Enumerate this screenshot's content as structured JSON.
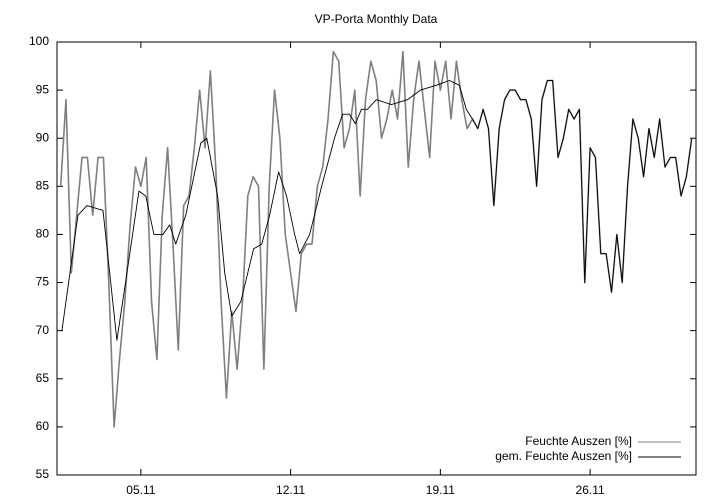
{
  "chart_data": {
    "type": "line",
    "title": "VP-Porta Monthly Data",
    "xlim": [
      1.08,
      30.95
    ],
    "xticks": [
      {
        "value": 5,
        "label": "05.11"
      },
      {
        "value": 12,
        "label": "12.11"
      },
      {
        "value": 19,
        "label": "19.11"
      },
      {
        "value": 26,
        "label": "26.11"
      }
    ],
    "ylim": [
      55,
      100
    ],
    "yticks": [
      55,
      60,
      65,
      70,
      75,
      80,
      85,
      90,
      95,
      100
    ],
    "grid": false,
    "legend": "bottom right",
    "series": [
      {
        "name": "Feuchte Auszen [%]",
        "color": "#7f7f7f",
        "x": [
          1.25,
          1.5,
          1.75,
          2,
          2.25,
          2.5,
          2.75,
          3,
          3.25,
          3.5,
          3.75,
          4,
          4.25,
          4.5,
          4.75,
          5,
          5.25,
          5.5,
          5.75,
          6,
          6.25,
          6.5,
          6.75,
          7,
          7.25,
          7.5,
          7.75,
          8,
          8.25,
          8.5,
          8.75,
          9,
          9.25,
          9.5,
          9.75,
          10,
          10.25,
          10.5,
          10.75,
          11,
          11.25,
          11.5,
          11.75,
          12,
          12.25,
          12.5,
          12.75,
          13,
          13.25,
          13.5,
          13.75,
          14,
          14.25,
          14.5,
          14.75,
          15,
          15.25,
          15.5,
          15.75,
          16,
          16.25,
          16.5,
          16.75,
          17,
          17.25,
          17.5,
          17.75,
          18,
          18.25,
          18.5,
          18.75,
          19,
          19.25,
          19.5,
          19.75,
          20,
          20.25,
          20.5,
          20.75,
          21,
          21.25,
          21.5,
          21.75,
          22,
          22.25,
          22.5,
          22.75,
          23,
          23.25,
          23.5,
          23.75,
          24,
          24.25,
          24.5,
          24.75,
          25,
          25.25,
          25.5,
          25.75,
          26,
          26.25,
          26.5,
          26.75,
          27,
          27.25,
          27.5,
          27.75,
          28,
          28.25,
          28.5,
          28.75,
          29,
          29.25,
          29.5,
          29.75,
          30,
          30.25,
          30.5,
          30.75
        ],
        "values": [
          85,
          94,
          76,
          82,
          88,
          88,
          82,
          88,
          88,
          75,
          60,
          67,
          73,
          81,
          87,
          85,
          88,
          73,
          67,
          82,
          89,
          79,
          68,
          83,
          84,
          89,
          95,
          89,
          97,
          87,
          73,
          63,
          72,
          66,
          73,
          84,
          86,
          85,
          66,
          85,
          95,
          90,
          80,
          76,
          72,
          78,
          79,
          79,
          85,
          87,
          92,
          99,
          98,
          89,
          91,
          95,
          84,
          94,
          98,
          96,
          90,
          92,
          95,
          92,
          99,
          87,
          94,
          98,
          93,
          88,
          98,
          95,
          98,
          92,
          98,
          94,
          91,
          92,
          91,
          93,
          91,
          83,
          91,
          94,
          95,
          95,
          94,
          94,
          92,
          85,
          94,
          96,
          96,
          88,
          90,
          93,
          92,
          93,
          75,
          89,
          88,
          78,
          78,
          74,
          80,
          75,
          85,
          92,
          90,
          86,
          91,
          88,
          92,
          87,
          88,
          88,
          84,
          86,
          90
        ]
      },
      {
        "name": "gem. Feuchte Auszen [%]",
        "color": "#000000",
        "x": [
          1.31,
          2.06,
          2.48,
          3.23,
          3.88,
          4.35,
          4.91,
          5.23,
          5.61,
          6.03,
          6.35,
          6.63,
          7.1,
          7.8,
          8.08,
          8.59,
          8.92,
          9.25,
          9.67,
          10.27,
          10.65,
          11.02,
          11.44,
          11.81,
          12.19,
          12.42,
          12.89,
          13.45,
          14.05,
          14.43,
          14.75,
          15.03,
          15.31,
          15.59,
          16.01,
          16.71,
          17.46,
          18.07,
          18.81,
          19.42,
          19.89,
          20.21,
          20.5,
          20.75,
          21,
          21.25,
          21.5,
          21.75,
          22,
          22.25,
          22.5,
          22.75,
          23,
          23.25,
          23.5,
          23.75,
          24,
          24.25,
          24.5,
          24.75,
          25,
          25.25,
          25.5,
          25.75,
          26,
          26.25,
          26.5,
          26.75,
          27,
          27.25,
          27.5,
          27.75,
          28,
          28.25,
          28.5,
          28.75,
          29,
          29.25,
          29.5,
          29.75,
          30,
          30.25,
          30.5,
          30.75
        ],
        "values": [
          70,
          82,
          83,
          82.5,
          69,
          76,
          84.5,
          84,
          80,
          80,
          81,
          79,
          82,
          89.5,
          90,
          84,
          76,
          71.5,
          73,
          78.5,
          79,
          82,
          86.5,
          84,
          80,
          78,
          80,
          85,
          90,
          92.5,
          92.5,
          91.5,
          93,
          93,
          94,
          93.5,
          94,
          95,
          95.5,
          96,
          95.5,
          93,
          92,
          91,
          93,
          91,
          83,
          91,
          94,
          95,
          95,
          94,
          94,
          92,
          85,
          94,
          96,
          96,
          88,
          90,
          93,
          92,
          93,
          75,
          89,
          88,
          78,
          78,
          74,
          80,
          75,
          85,
          92,
          90,
          86,
          91,
          88,
          92,
          87,
          88,
          88,
          84,
          86,
          90
        ]
      }
    ]
  }
}
